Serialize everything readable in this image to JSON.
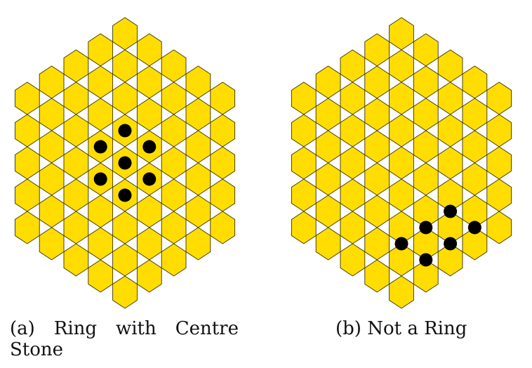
{
  "colors": {
    "cell_fill": "#FFDD00",
    "cell_stroke": "#3a3000",
    "stone": "#000000",
    "background": "#ffffff"
  },
  "boards": [
    {
      "id": "a",
      "caption": {
        "label": "(a)",
        "words": [
          "Ring",
          "with",
          "Centre"
        ],
        "continuation": "Stone"
      },
      "stones": [
        [
          0,
          -2
        ],
        [
          -1,
          -1
        ],
        [
          1,
          -1
        ],
        [
          0,
          0
        ],
        [
          -1,
          1
        ],
        [
          1,
          1
        ],
        [
          0,
          2
        ]
      ]
    },
    {
      "id": "b",
      "caption": {
        "label": "(b)",
        "text": "Not a Ring"
      },
      "stones": [
        [
          2,
          3
        ],
        [
          1,
          4
        ],
        [
          3,
          4
        ],
        [
          0,
          5
        ],
        [
          2,
          5
        ],
        [
          1,
          6
        ]
      ]
    }
  ]
}
